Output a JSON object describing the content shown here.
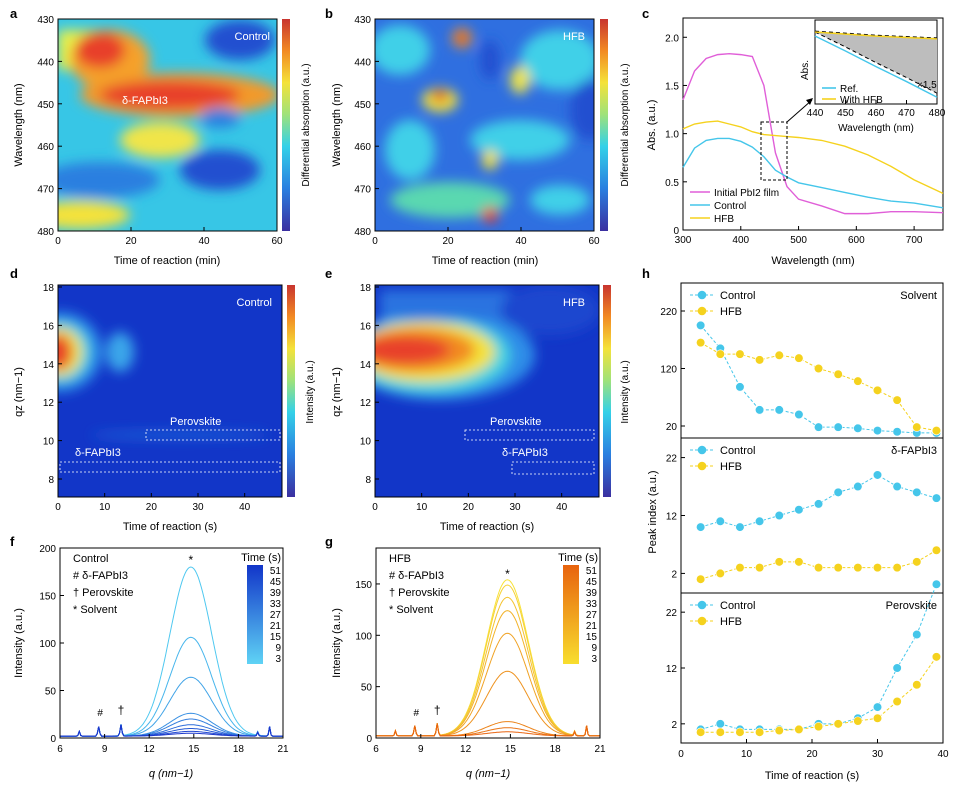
{
  "panels": {
    "a": {
      "letter": "a",
      "tag": "Control",
      "annotation": "δ-FAPbI3",
      "xlabel": "Time of reaction (min)",
      "ylabel": "Wavelength (nm)",
      "cbar_label": "Differential absorption (a.u.)",
      "xticks": [
        "0",
        "20",
        "40",
        "60"
      ],
      "yticks": [
        "430",
        "440",
        "450",
        "460",
        "470",
        "480"
      ]
    },
    "b": {
      "letter": "b",
      "tag": "HFB",
      "xlabel": "Time of reaction (min)",
      "ylabel": "Wavelength (nm)",
      "cbar_label": "Differential absorption (a.u.)",
      "xticks": [
        "0",
        "20",
        "40",
        "60"
      ],
      "yticks": [
        "430",
        "440",
        "450",
        "460",
        "470",
        "480"
      ]
    },
    "c": {
      "letter": "c",
      "xlabel": "Wavelength (nm)",
      "ylabel": "Abs. (a.u.)",
      "xticks": [
        "300",
        "400",
        "500",
        "600",
        "700"
      ],
      "yticks": [
        "0",
        "0.5",
        "1.0",
        "1.5",
        "2.0"
      ],
      "legend": [
        "Initial PbI2 film",
        "Control",
        "HFB"
      ],
      "inset": {
        "xlabel": "Wavelength (nm)",
        "ylabel": "Abs.",
        "xticks": [
          "440",
          "450",
          "460",
          "470",
          "480"
        ],
        "legend": [
          "Ref.",
          "With HFB"
        ],
        "note": "×1.5"
      }
    },
    "d": {
      "letter": "d",
      "tag": "Control",
      "xlabel": "Time of reaction (s)",
      "ylabel": "qz (nm−1)",
      "cbar_label": "Intensity (a.u.)",
      "xticks": [
        "0",
        "10",
        "20",
        "30",
        "40"
      ],
      "yticks": [
        "8",
        "10",
        "12",
        "14",
        "16",
        "18"
      ],
      "box1": "Perovskite",
      "box2": "δ-FAPbI3"
    },
    "e": {
      "letter": "e",
      "tag": "HFB",
      "xlabel": "Time of reaction (s)",
      "ylabel": "qz (nm−1)",
      "cbar_label": "Intensity (a.u.)",
      "xticks": [
        "0",
        "10",
        "20",
        "30",
        "40"
      ],
      "yticks": [
        "8",
        "10",
        "12",
        "14",
        "16",
        "18"
      ],
      "box1": "Perovskite",
      "box2": "δ-FAPbI3"
    },
    "f": {
      "letter": "f",
      "title": "Control",
      "xlabel": "q (nm−1)",
      "ylabel": "Intensity (a.u.)",
      "xticks": [
        "6",
        "9",
        "12",
        "15",
        "18",
        "21"
      ],
      "yticks": [
        "0",
        "50",
        "100",
        "150",
        "200"
      ],
      "keys": [
        "#  δ-FAPbI3",
        "†  Perovskite",
        "*  Solvent"
      ],
      "time_title": "Time (s)",
      "times": [
        "51",
        "45",
        "39",
        "33",
        "27",
        "21",
        "15",
        "9",
        "3"
      ]
    },
    "g": {
      "letter": "g",
      "title": "HFB",
      "xlabel": "q (nm−1)",
      "ylabel": "Intensity (a.u.)",
      "xticks": [
        "6",
        "9",
        "12",
        "15",
        "18",
        "21"
      ],
      "yticks": [
        "0",
        "50",
        "100",
        "150"
      ],
      "keys": [
        "#  δ-FAPbI3",
        "†  Perovskite",
        "*  Solvent"
      ],
      "time_title": "Time (s)",
      "times": [
        "51",
        "45",
        "39",
        "33",
        "27",
        "21",
        "15",
        "9",
        "3"
      ]
    },
    "h": {
      "letter": "h",
      "xlabel": "Time of reaction (s)",
      "ylabel": "Peak index (a.u.)",
      "xticks": [
        "0",
        "10",
        "20",
        "30",
        "40"
      ],
      "subs": [
        {
          "title": "Solvent",
          "yticks": [
            "20",
            "120",
            "220"
          ]
        },
        {
          "title": "δ-FAPbI3",
          "yticks": [
            "2",
            "12",
            "22"
          ]
        },
        {
          "title": "Perovskite",
          "yticks": [
            "2",
            "12",
            "22"
          ]
        }
      ],
      "legend": [
        "Control",
        "HFB"
      ]
    }
  },
  "colors": {
    "control_cyan": "#45c6ea",
    "hfb_yellow": "#f5d21e",
    "pbi2_magenta": "#e05fd8",
    "jet_blue": "#1f35c9"
  },
  "chart_data": [
    {
      "panel": "c",
      "type": "line",
      "xlim": [
        300,
        750
      ],
      "ylim": [
        0,
        2.2
      ],
      "series": [
        {
          "name": "Initial PbI2 film",
          "x": [
            300,
            320,
            340,
            360,
            380,
            400,
            420,
            440,
            460,
            480,
            500,
            540,
            580,
            620,
            660,
            700,
            750
          ],
          "y": [
            1.35,
            1.65,
            1.78,
            1.82,
            1.83,
            1.82,
            1.8,
            1.5,
            0.8,
            0.45,
            0.32,
            0.25,
            0.17,
            0.17,
            0.19,
            0.19,
            0.18
          ]
        },
        {
          "name": "Control",
          "x": [
            300,
            320,
            340,
            360,
            380,
            400,
            420,
            440,
            460,
            480,
            500,
            540,
            580,
            620,
            660,
            700,
            750
          ],
          "y": [
            0.65,
            0.85,
            0.93,
            0.95,
            0.95,
            0.92,
            0.86,
            0.76,
            0.62,
            0.55,
            0.49,
            0.44,
            0.39,
            0.34,
            0.3,
            0.28,
            0.23
          ]
        },
        {
          "name": "HFB",
          "x": [
            300,
            320,
            340,
            360,
            380,
            400,
            420,
            440,
            460,
            480,
            500,
            540,
            580,
            620,
            660,
            700,
            750
          ],
          "y": [
            1.05,
            1.1,
            1.12,
            1.13,
            1.1,
            1.07,
            1.02,
            0.99,
            0.98,
            0.97,
            0.96,
            0.93,
            0.87,
            0.78,
            0.66,
            0.52,
            0.38
          ]
        }
      ]
    },
    {
      "panel": "c-inset",
      "type": "line",
      "xlim": [
        440,
        480
      ],
      "series": [
        {
          "name": "Ref.",
          "x": [
            440,
            450,
            460,
            470,
            480
          ],
          "y": [
            1.0,
            0.78,
            0.55,
            0.33,
            0.1
          ]
        },
        {
          "name": "With HFB",
          "x": [
            440,
            450,
            460,
            470,
            480
          ],
          "y": [
            1.0,
            0.97,
            0.94,
            0.92,
            0.9
          ]
        }
      ]
    },
    {
      "panel": "h-solvent",
      "type": "line",
      "x": [
        3,
        6,
        9,
        12,
        15,
        18,
        21,
        24,
        27,
        30,
        33,
        36,
        39
      ],
      "series": [
        {
          "name": "Control",
          "values": [
            195,
            155,
            88,
            48,
            48,
            40,
            18,
            18,
            16,
            12,
            10,
            8,
            8
          ]
        },
        {
          "name": "HFB",
          "values": [
            165,
            145,
            145,
            135,
            143,
            138,
            120,
            110,
            98,
            82,
            65,
            18,
            12
          ]
        }
      ]
    },
    {
      "panel": "h-delta",
      "type": "line",
      "x": [
        3,
        6,
        9,
        12,
        15,
        18,
        21,
        24,
        27,
        30,
        33,
        36,
        39
      ],
      "series": [
        {
          "name": "Control",
          "values": [
            10,
            11,
            10,
            11,
            12,
            13,
            14,
            16,
            17,
            19,
            17,
            16,
            15
          ]
        },
        {
          "name": "HFB",
          "values": [
            1,
            2,
            3,
            3,
            4,
            4,
            3,
            3,
            3,
            3,
            3,
            4,
            6
          ]
        }
      ]
    },
    {
      "panel": "h-perovskite",
      "type": "line",
      "x": [
        3,
        6,
        9,
        12,
        15,
        18,
        21,
        24,
        27,
        30,
        33,
        36,
        39
      ],
      "series": [
        {
          "name": "Control",
          "values": [
            1,
            2,
            1,
            1,
            1,
            1,
            2,
            2,
            3,
            5,
            12,
            18,
            27
          ]
        },
        {
          "name": "HFB",
          "values": [
            0.5,
            0.5,
            0.5,
            0.5,
            0.8,
            1,
            1.5,
            2,
            2.5,
            3,
            6,
            9,
            14
          ]
        }
      ]
    }
  ]
}
